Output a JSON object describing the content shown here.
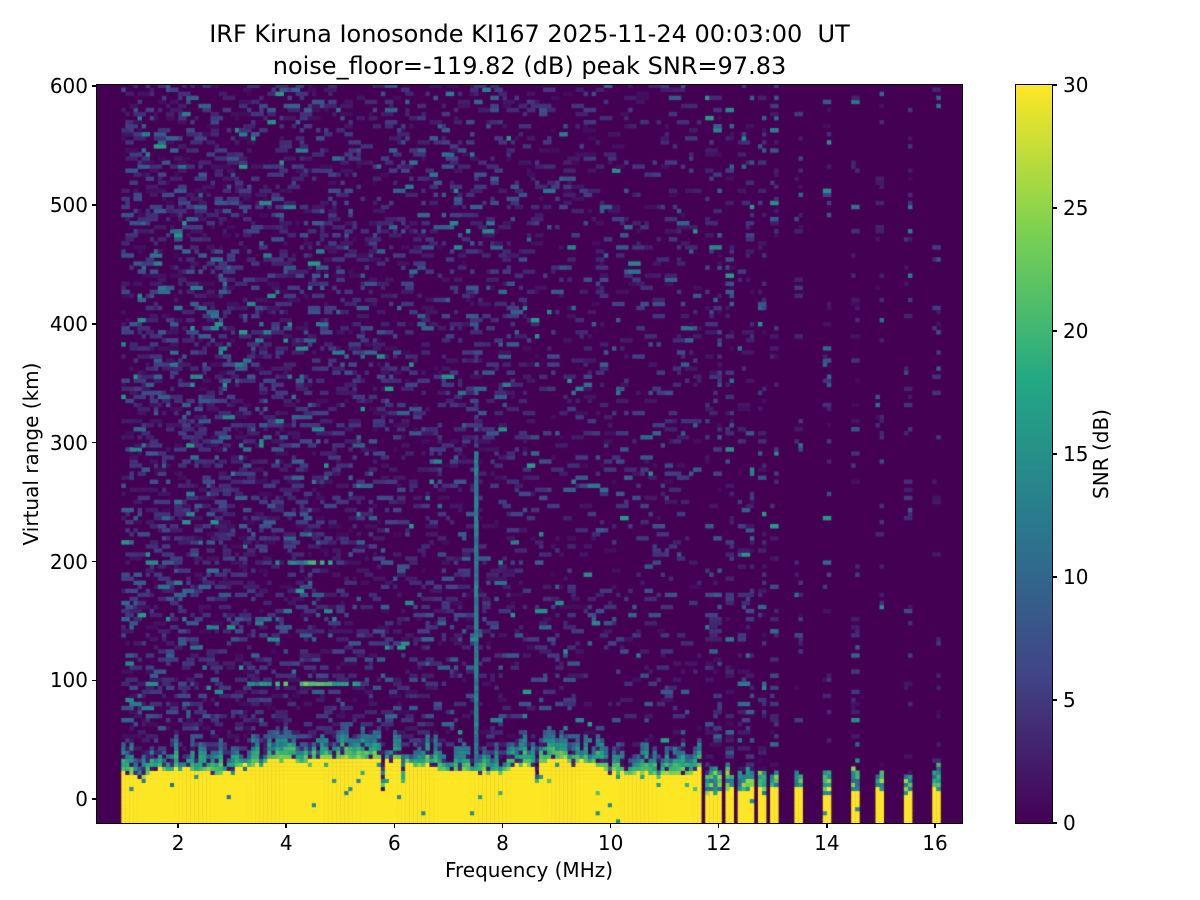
{
  "figure": {
    "title_line1": "IRF Kiruna Ionosonde KI167 2025-11-24 00:03:00  UT",
    "title_line2": "noise_floor=-119.82 (dB) peak SNR=97.83"
  },
  "chart_data": {
    "type": "heatmap",
    "title": "IRF Kiruna Ionosonde KI167 2025-11-24 00:03:00  UT",
    "subtitle": "noise_floor=-119.82 (dB) peak SNR=97.83",
    "station": "KI167",
    "timestamp_ut": "2025-11-24 00:03:00",
    "noise_floor_dB": -119.82,
    "peak_snr_dB": 97.83,
    "xlabel": "Frequency (MHz)",
    "ylabel": "Virtual range (km)",
    "colorbar_label": "SNR (dB)",
    "xlim": [
      0.5,
      16.5
    ],
    "ylim": [
      -20,
      601
    ],
    "clim": [
      0,
      30
    ],
    "xticks": [
      2,
      4,
      6,
      8,
      10,
      12,
      14,
      16
    ],
    "yticks": [
      0,
      100,
      200,
      300,
      400,
      500,
      600
    ],
    "colorbar_ticks": [
      0,
      5,
      10,
      15,
      20,
      25,
      30
    ],
    "colormap": "viridis",
    "colormap_stops": [
      "#440154",
      "#414487",
      "#2a788e",
      "#22a884",
      "#7ad151",
      "#fde725"
    ],
    "grid": false,
    "legend": "colorbar-right",
    "sweep": {
      "continuous_range_mhz": [
        0.95,
        11.65
      ],
      "discrete_frequencies_mhz": [
        11.8,
        12.0,
        12.2,
        12.4,
        12.6,
        12.8,
        13.0,
        13.5,
        14.0,
        14.5,
        15.0,
        15.5,
        16.0
      ]
    },
    "features": {
      "ground_clutter_band": {
        "range_km": [
          -20,
          30
        ],
        "snr_dB": 30,
        "note": "saturated yellow band at bottom across all sounded frequencies, ragged teal top"
      },
      "ground_clutter_band_discrete": {
        "range_km": [
          -20,
          8
        ],
        "snr_dB": 30,
        "note": "short yellow bars with teal tops at each discrete frequency above 11.65 MHz"
      },
      "echo_traces": [
        {
          "range_km": 98,
          "freq_mhz": [
            3.15,
            5.35
          ],
          "bright_mhz": [
            3.8,
            4.85
          ],
          "snr_dB": 20
        },
        {
          "range_km": 199,
          "freq_mhz": [
            3.8,
            4.85
          ],
          "bright_mhz": [
            4.35,
            4.8
          ],
          "snr_dB": 16
        },
        {
          "range_km": 130,
          "freq_mhz": [
            4.0,
            4.55
          ],
          "bright_mhz": [
            4.4,
            4.55
          ],
          "snr_dB": 13,
          "sparse": true
        }
      ],
      "interference_line": {
        "freq_mhz": 7.48,
        "range_km": [
          26,
          292
        ],
        "snr_dB": 13,
        "note": "narrow vertical blue stripe, fading above 292 km"
      },
      "background_noise_dB": [
        0,
        8
      ],
      "no_data_below_mhz": 0.95
    }
  }
}
